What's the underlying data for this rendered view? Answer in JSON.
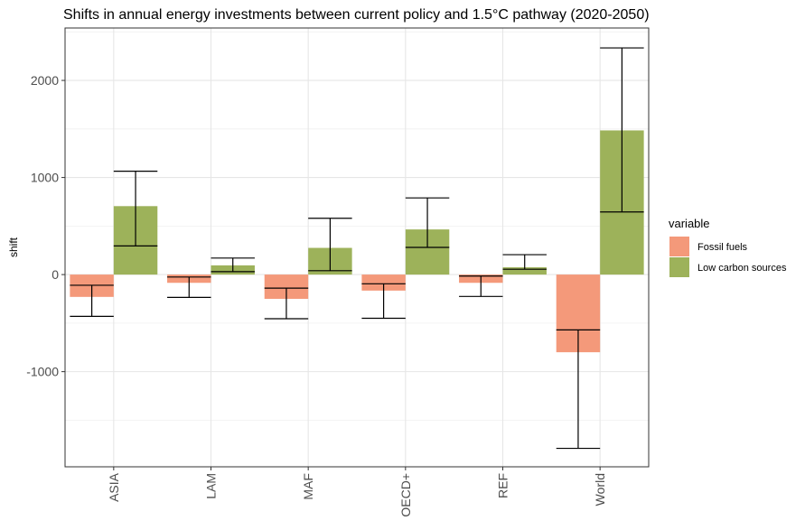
{
  "chart_data": {
    "type": "bar",
    "title": "Shifts in annual energy investments between current policy and 1.5°C pathway (2020-2050)",
    "xlabel": "",
    "ylabel": "shift",
    "categories": [
      "ASIA",
      "LAM",
      "MAF",
      "OECD+",
      "REF",
      "World"
    ],
    "ylim": [
      -1980,
      2540
    ],
    "yticks": [
      -1000,
      0,
      1000,
      2000
    ],
    "grid": true,
    "legend_title": "variable",
    "legend_position": "right",
    "series": [
      {
        "name": "Fossil fuels",
        "color": "#f4997a",
        "values": [
          -230,
          -85,
          -250,
          -165,
          -85,
          -800
        ],
        "error_low": [
          -430,
          -235,
          -455,
          -450,
          -225,
          -1790
        ],
        "error_high": [
          -110,
          -25,
          -140,
          -95,
          -15,
          -570
        ]
      },
      {
        "name": "Low carbon sources",
        "color": "#9db25a",
        "values": [
          705,
          95,
          275,
          465,
          75,
          1485
        ],
        "error_low": [
          295,
          30,
          40,
          280,
          55,
          645
        ],
        "error_high": [
          1065,
          170,
          580,
          790,
          205,
          2335
        ]
      }
    ]
  }
}
